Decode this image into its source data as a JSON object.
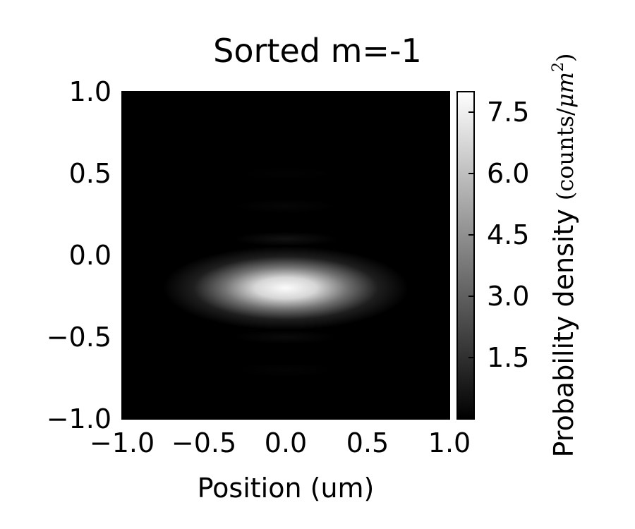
{
  "chart_data": {
    "type": "heatmap",
    "title": "Sorted m=-1",
    "xlabel": "Position (um)",
    "ylabel": "",
    "xlim": [
      -1.0,
      1.0
    ],
    "ylim": [
      -1.0,
      1.0
    ],
    "x_ticks": [
      "−1.0",
      "−0.5",
      "0.0",
      "0.5",
      "1.0"
    ],
    "x_tick_values": [
      -1.0,
      -0.5,
      0.0,
      0.5,
      1.0
    ],
    "y_ticks": [
      "1.0",
      "0.5",
      "0.0",
      "−0.5",
      "−1.0"
    ],
    "y_tick_values": [
      1.0,
      0.5,
      0.0,
      -0.5,
      -1.0
    ],
    "colormap": "gray",
    "colorbar": {
      "label_text": "Probability density ",
      "label_math_prefix": "(counts/",
      "label_math_mu": "μm",
      "label_math_exp": "2",
      "label_math_suffix": ")",
      "range": [
        0,
        8.0
      ],
      "ticks": [
        "7.5",
        "6.0",
        "4.5",
        "3.0",
        "1.5"
      ],
      "tick_values": [
        7.5,
        6.0,
        4.5,
        3.0,
        1.5
      ]
    },
    "peak": {
      "x": 0.0,
      "y": -0.2,
      "value": 7.9,
      "sigma_x": 0.25,
      "sigma_y": 0.08
    },
    "fringes": [
      {
        "y": 0.1,
        "value": 0.35
      },
      {
        "y": 0.3,
        "value": 0.12
      },
      {
        "y": 0.5,
        "value": 0.05
      },
      {
        "y": -0.5,
        "value": 0.2
      },
      {
        "y": -0.7,
        "value": 0.08
      }
    ]
  }
}
